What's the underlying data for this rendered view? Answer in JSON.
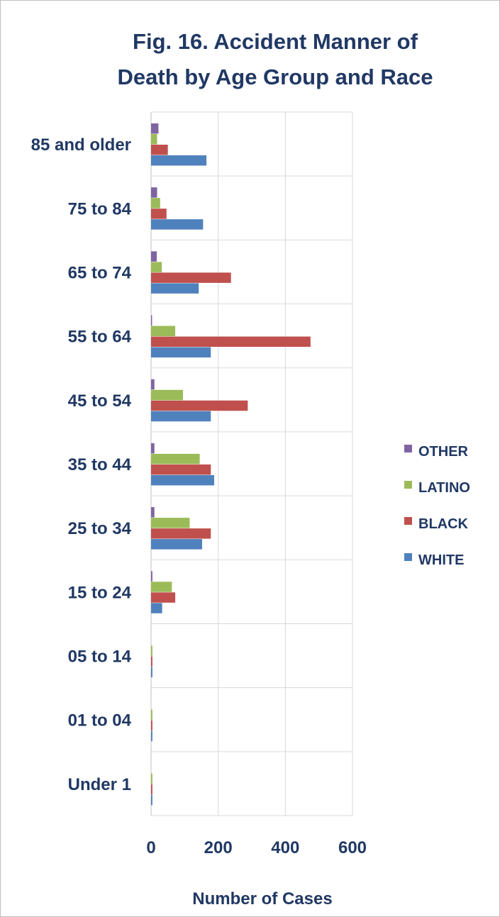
{
  "chart_data": {
    "type": "bar",
    "orientation": "horizontal",
    "title_lines": [
      "Fig. 16. Accident Manner of",
      "Death by Age Group and Race"
    ],
    "xlabel": "Number of Cases",
    "ylabel": "",
    "xlim": [
      0,
      600
    ],
    "xticks": [
      "0",
      "200",
      "400",
      "600"
    ],
    "grid": "vertical",
    "legend_position": "right",
    "categories": [
      "85 and older",
      "75 to 84",
      "65 to 74",
      "55 to 64",
      "45 to 54",
      "35 to 44",
      "25 to 34",
      "15 to 24",
      "05 to 14",
      "01 to 04",
      "Under 1"
    ],
    "series": [
      {
        "name": "OTHER",
        "color": "#8064a2",
        "values": [
          22,
          18,
          17,
          3,
          10,
          10,
          10,
          4,
          0,
          0,
          0
        ]
      },
      {
        "name": "LATINO",
        "color": "#9bbb59",
        "values": [
          18,
          27,
          32,
          72,
          95,
          145,
          115,
          62,
          4,
          4,
          4
        ]
      },
      {
        "name": "BLACK",
        "color": "#c0504d",
        "values": [
          50,
          46,
          238,
          475,
          288,
          178,
          178,
          72,
          4,
          4,
          4
        ]
      },
      {
        "name": "WHITE",
        "color": "#4f81bd",
        "values": [
          165,
          155,
          142,
          178,
          178,
          188,
          152,
          33,
          4,
          4,
          4
        ]
      }
    ],
    "legend_order": [
      "OTHER",
      "LATINO",
      "BLACK",
      "WHITE"
    ]
  }
}
